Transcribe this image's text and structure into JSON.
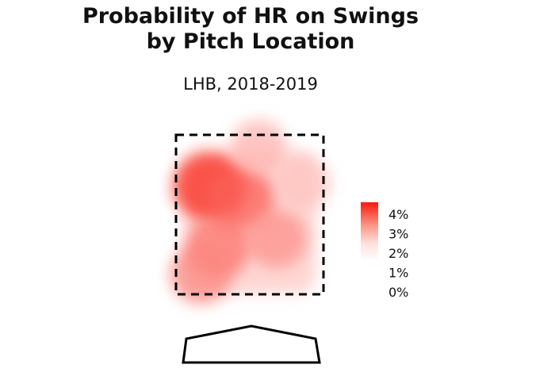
{
  "chart_data": {
    "type": "heatmap",
    "title_line1": "Probability of HR on Swings",
    "title_line2": "by Pitch Location",
    "subtitle": "LHB, 2018-2019",
    "legend": {
      "position": "right",
      "ticks": [
        "4%",
        "3%",
        "2%",
        "1%",
        "0%"
      ],
      "tick_values": [
        4,
        3,
        2,
        1,
        0
      ],
      "max_value": 4.6,
      "color_low": "#ffffff",
      "color_high": "#f8190c"
    },
    "hotspots": [
      {
        "x": -0.45,
        "y": 2.85,
        "value": 4.3
      },
      {
        "x": -0.1,
        "y": 2.7,
        "value": 3.2
      },
      {
        "x": -0.35,
        "y": 2.1,
        "value": 2.8
      },
      {
        "x": 0.3,
        "y": 2.2,
        "value": 2.2
      },
      {
        "x": -0.55,
        "y": 1.75,
        "value": 2.4
      },
      {
        "x": 0.1,
        "y": 3.35,
        "value": 1.5
      },
      {
        "x": 0.6,
        "y": 2.9,
        "value": 1.2
      }
    ],
    "strike_zone": {
      "x": [
        -0.83,
        0.83
      ],
      "y": [
        1.5,
        3.5
      ]
    },
    "grid": false
  }
}
